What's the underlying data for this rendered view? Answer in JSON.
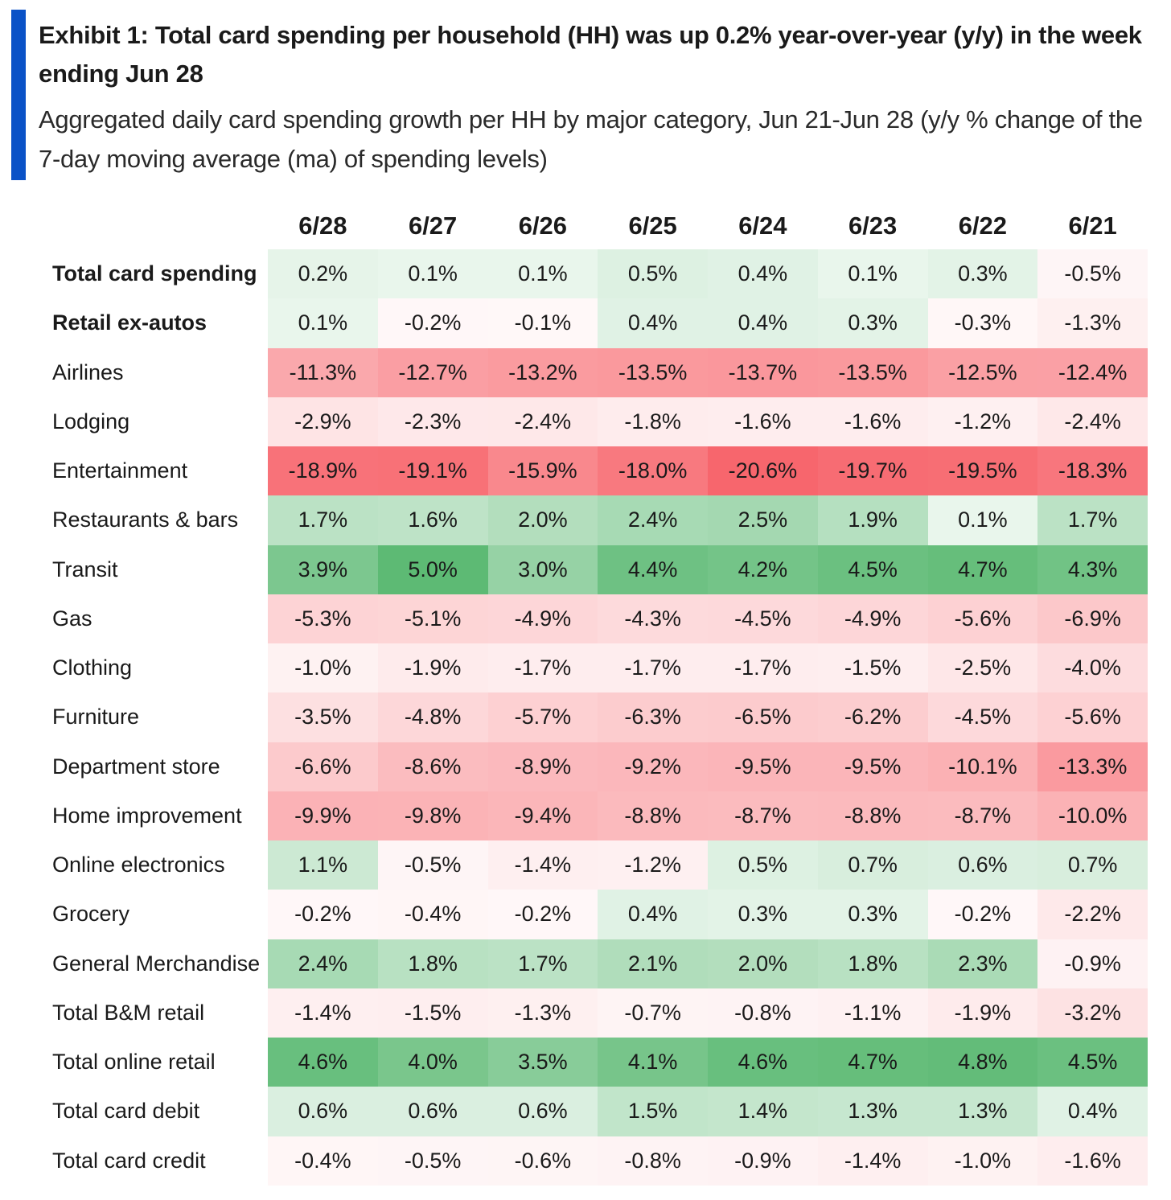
{
  "header": {
    "title": "Exhibit 1: Total card spending per household (HH) was up 0.2% year-over-year (y/y) in the week ending Jun 28",
    "subtitle": "Aggregated daily card spending growth per HH by major category, Jun 21-Jun 28 (y/y % change of the 7-day moving average (ma) of spending levels)",
    "accent_color": "#0a52c7"
  },
  "colors": {
    "positive_max": "#5dba74",
    "negative_max": "#f7666d",
    "neutral": "#ffffff"
  },
  "chart_data": {
    "type": "heatmap",
    "title": "Exhibit 1: Total card spending per household (HH) was up 0.2% year-over-year (y/y) in the week ending Jun 28",
    "subtitle": "Aggregated daily card spending growth per HH by major category, Jun 21-Jun 28 (y/y % change of the 7-day moving average (ma) of spending levels)",
    "columns": [
      "6/28",
      "6/27",
      "6/26",
      "6/25",
      "6/24",
      "6/23",
      "6/22",
      "6/21"
    ],
    "value_format": "percent",
    "rows": [
      {
        "label": "Total card spending",
        "bold": true,
        "values": [
          0.2,
          0.1,
          0.1,
          0.5,
          0.4,
          0.1,
          0.3,
          -0.5
        ]
      },
      {
        "label": "Retail ex-autos",
        "bold": true,
        "values": [
          0.1,
          -0.2,
          -0.1,
          0.4,
          0.4,
          0.3,
          -0.3,
          -1.3
        ]
      },
      {
        "label": "Airlines",
        "bold": false,
        "values": [
          -11.3,
          -12.7,
          -13.2,
          -13.5,
          -13.7,
          -13.5,
          -12.5,
          -12.4
        ]
      },
      {
        "label": "Lodging",
        "bold": false,
        "values": [
          -2.9,
          -2.3,
          -2.4,
          -1.8,
          -1.6,
          -1.6,
          -1.2,
          -2.4
        ]
      },
      {
        "label": "Entertainment",
        "bold": false,
        "values": [
          -18.9,
          -19.1,
          -15.9,
          -18.0,
          -20.6,
          -19.7,
          -19.5,
          -18.3
        ]
      },
      {
        "label": "Restaurants & bars",
        "bold": false,
        "values": [
          1.7,
          1.6,
          2.0,
          2.4,
          2.5,
          1.9,
          0.1,
          1.7
        ]
      },
      {
        "label": "Transit",
        "bold": false,
        "values": [
          3.9,
          5.0,
          3.0,
          4.4,
          4.2,
          4.5,
          4.7,
          4.3
        ]
      },
      {
        "label": "Gas",
        "bold": false,
        "values": [
          -5.3,
          -5.1,
          -4.9,
          -4.3,
          -4.5,
          -4.9,
          -5.6,
          -6.9
        ]
      },
      {
        "label": "Clothing",
        "bold": false,
        "values": [
          -1.0,
          -1.9,
          -1.7,
          -1.7,
          -1.7,
          -1.5,
          -2.5,
          -4.0
        ]
      },
      {
        "label": "Furniture",
        "bold": false,
        "values": [
          -3.5,
          -4.8,
          -5.7,
          -6.3,
          -6.5,
          -6.2,
          -4.5,
          -5.6
        ]
      },
      {
        "label": "Department store",
        "bold": false,
        "values": [
          -6.6,
          -8.6,
          -8.9,
          -9.2,
          -9.5,
          -9.5,
          -10.1,
          -13.3
        ]
      },
      {
        "label": "Home improvement",
        "bold": false,
        "values": [
          -9.9,
          -9.8,
          -9.4,
          -8.8,
          -8.7,
          -8.8,
          -8.7,
          -10.0
        ]
      },
      {
        "label": "Online electronics",
        "bold": false,
        "values": [
          1.1,
          -0.5,
          -1.4,
          -1.2,
          0.5,
          0.7,
          0.6,
          0.7
        ]
      },
      {
        "label": "Grocery",
        "bold": false,
        "values": [
          -0.2,
          -0.4,
          -0.2,
          0.4,
          0.3,
          0.3,
          -0.2,
          -2.2
        ]
      },
      {
        "label": "General Merchandise",
        "bold": false,
        "values": [
          2.4,
          1.8,
          1.7,
          2.1,
          2.0,
          1.8,
          2.3,
          -0.9
        ]
      },
      {
        "label": "Total B&M retail",
        "bold": false,
        "values": [
          -1.4,
          -1.5,
          -1.3,
          -0.7,
          -0.8,
          -1.1,
          -1.9,
          -3.2
        ]
      },
      {
        "label": "Total online retail",
        "bold": false,
        "values": [
          4.6,
          4.0,
          3.5,
          4.1,
          4.6,
          4.7,
          4.8,
          4.5
        ]
      },
      {
        "label": "Total card debit",
        "bold": false,
        "values": [
          0.6,
          0.6,
          0.6,
          1.5,
          1.4,
          1.3,
          1.3,
          0.4
        ]
      },
      {
        "label": "Total card credit",
        "bold": false,
        "values": [
          -0.4,
          -0.5,
          -0.6,
          -0.8,
          -0.9,
          -1.4,
          -1.0,
          -1.6
        ]
      }
    ]
  }
}
